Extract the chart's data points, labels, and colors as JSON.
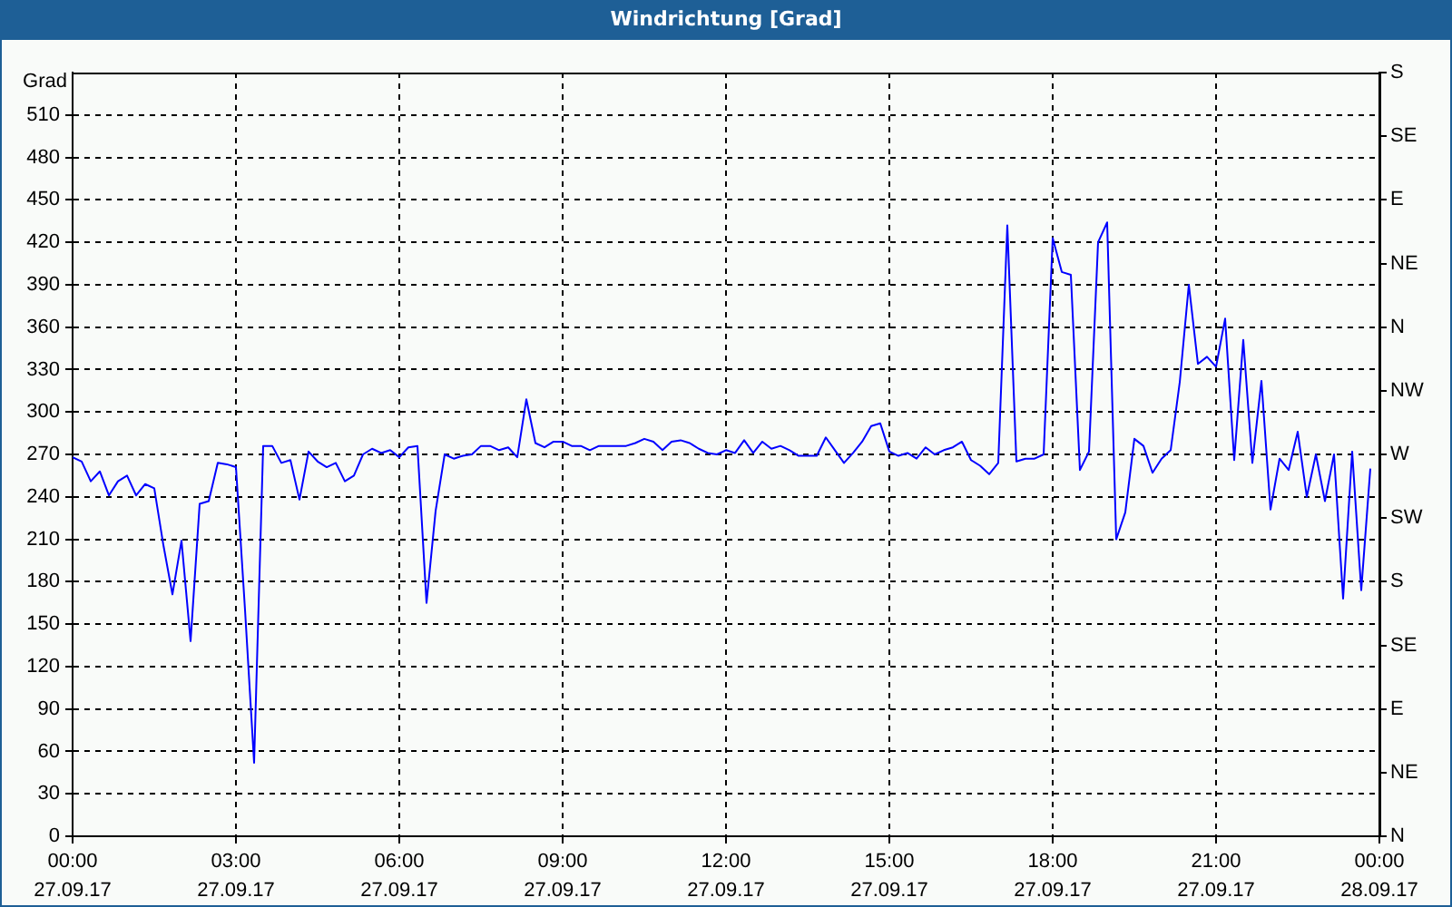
{
  "chart_data": {
    "type": "line",
    "title": "Windrichtung [Grad]",
    "ylabel": "Grad",
    "x": [
      "--09-27T00:00",
      "--09-27T00:10",
      "--09-27T00:20",
      "--09-27T00:30",
      "--09-27T00:40",
      "--09-27T00:50",
      "--09-27T01:00",
      "--09-27T01:10",
      "--09-27T01:20",
      "--09-27T01:30",
      "--09-27T01:40",
      "--09-27T01:50",
      "--09-27T02:00",
      "--09-27T02:10",
      "--09-27T02:20",
      "--09-27T02:30",
      "--09-27T02:40",
      "--09-27T02:50",
      "--09-27T03:00",
      "--09-27T03:10",
      "--09-27T03:20",
      "--09-27T03:30",
      "--09-27T03:40",
      "--09-27T03:50",
      "--09-27T04:00",
      "--09-27T04:10",
      "--09-27T04:20",
      "--09-27T04:30",
      "--09-27T04:40",
      "--09-27T04:50",
      "--09-27T05:00",
      "--09-27T05:10",
      "--09-27T05:20",
      "--09-27T05:30",
      "--09-27T05:40",
      "--09-27T05:50",
      "--09-27T06:00",
      "--09-27T06:10",
      "--09-27T06:20",
      "--09-27T06:30",
      "--09-27T06:40",
      "--09-27T06:50",
      "--09-27T07:00",
      "--09-27T07:10",
      "--09-27T07:20",
      "--09-27T07:30",
      "--09-27T07:40",
      "--09-27T07:50",
      "--09-27T08:00",
      "--09-27T08:10",
      "--09-27T08:20",
      "--09-27T08:30",
      "--09-27T08:40",
      "--09-27T08:50",
      "--09-27T09:00",
      "--09-27T09:10",
      "--09-27T09:20",
      "--09-27T09:30",
      "--09-27T09:40",
      "--09-27T09:50",
      "--09-27T10:00",
      "--09-27T10:10",
      "--09-27T10:20",
      "--09-27T10:30",
      "--09-27T10:40",
      "--09-27T10:50",
      "--09-27T11:00",
      "--09-27T11:10",
      "--09-27T11:20",
      "--09-27T11:30",
      "--09-27T11:40",
      "--09-27T11:50",
      "--09-27T12:00",
      "--09-27T12:10",
      "--09-27T12:20",
      "--09-27T12:30",
      "--09-27T12:40",
      "--09-27T12:50",
      "--09-27T13:00",
      "--09-27T13:10",
      "--09-27T13:20",
      "--09-27T13:30",
      "--09-27T13:40",
      "--09-27T13:50",
      "--09-27T14:00",
      "--09-27T14:10",
      "--09-27T14:20",
      "--09-27T14:30",
      "--09-27T14:40",
      "--09-27T14:50",
      "--09-27T15:00",
      "--09-27T15:10",
      "--09-27T15:20",
      "--09-27T15:30",
      "--09-27T15:40",
      "--09-27T15:50",
      "--09-27T16:00",
      "--09-27T16:10",
      "--09-27T16:20",
      "--09-27T16:30",
      "--09-27T16:40",
      "--09-27T16:50",
      "--09-27T17:00",
      "--09-27T17:10",
      "--09-27T17:20",
      "--09-27T17:30",
      "--09-27T17:40",
      "--09-27T17:50",
      "--09-27T18:00",
      "--09-27T18:10",
      "--09-27T18:20",
      "--09-27T18:30",
      "--09-27T18:40",
      "--09-27T18:50",
      "--09-27T19:00",
      "--09-27T19:10",
      "--09-27T19:20",
      "--09-27T19:30",
      "--09-27T19:40",
      "--09-27T19:50",
      "--09-27T20:00",
      "--09-27T20:10",
      "--09-27T20:20",
      "--09-27T20:30",
      "--09-27T20:40",
      "--09-27T20:50",
      "--09-27T21:00",
      "--09-27T21:10",
      "--09-27T21:20",
      "--09-27T21:30",
      "--09-27T21:40",
      "--09-27T21:50",
      "--09-27T22:00",
      "--09-27T22:10",
      "--09-27T22:20",
      "--09-27T22:30",
      "--09-27T22:40",
      "--09-27T22:50",
      "--09-27T23:00",
      "--09-27T23:10",
      "--09-27T23:20",
      "--09-27T23:30",
      "--09-27T23:40",
      "--09-27T23:50"
    ],
    "values": [
      268,
      265,
      251,
      258,
      241,
      251,
      255,
      241,
      249,
      246,
      206,
      171,
      209,
      138,
      235,
      237,
      264,
      263,
      261,
      160,
      52,
      276,
      276,
      264,
      266,
      238,
      272,
      265,
      261,
      264,
      251,
      255,
      270,
      274,
      271,
      273,
      268,
      275,
      276,
      165,
      230,
      270,
      267,
      269,
      270,
      276,
      276,
      273,
      275,
      268,
      309,
      278,
      275,
      279,
      279,
      276,
      276,
      273,
      276,
      276,
      276,
      276,
      278,
      281,
      279,
      273,
      279,
      280,
      278,
      274,
      271,
      270,
      273,
      271,
      280,
      271,
      279,
      274,
      276,
      273,
      269,
      269,
      269,
      282,
      273,
      264,
      271,
      279,
      290,
      292,
      272,
      269,
      271,
      267,
      275,
      270,
      273,
      275,
      279,
      266,
      262,
      256,
      264,
      432,
      265,
      267,
      267,
      270,
      423,
      399,
      397,
      259,
      272,
      420,
      434,
      210,
      229,
      281,
      276,
      257,
      267,
      273,
      321,
      390,
      334,
      339,
      332,
      366,
      266,
      351,
      264,
      322,
      231,
      267,
      259,
      286,
      240,
      270,
      237,
      270,
      168,
      272,
      174,
      260
    ],
    "color": "#0000ff",
    "xlim": [
      "--09-27T00:00",
      "--09-28T00:00"
    ],
    "xticks": [
      {
        "value": "--09-27T00:00",
        "label": "00:00\n27.09.17"
      },
      {
        "value": "--09-27T03:00",
        "label": "03:00\n27.09.17"
      },
      {
        "value": "--09-27T06:00",
        "label": "06:00\n27.09.17"
      },
      {
        "value": "--09-27T09:00",
        "label": "09:00\n27.09.17"
      },
      {
        "value": "--09-27T12:00",
        "label": "12:00\n27.09.17"
      },
      {
        "value": "--09-27T15:00",
        "label": "15:00\n27.09.17"
      },
      {
        "value": "--09-27T18:00",
        "label": "18:00\n27.09.17"
      },
      {
        "value": "--09-27T21:00",
        "label": "21:00\n27.09.17"
      },
      {
        "value": "--09-28T00:00",
        "label": "00:00\n28.09.17"
      }
    ],
    "ylim": [
      0,
      540
    ],
    "yticks": [
      0,
      30,
      60,
      90,
      120,
      150,
      180,
      210,
      240,
      270,
      300,
      330,
      360,
      390,
      420,
      450,
      480,
      510
    ],
    "y2_categories": [
      "S",
      "SE",
      "E",
      "NE",
      "N",
      "NW",
      "W",
      "SW",
      "S",
      "SE",
      "E",
      "NE",
      "N"
    ],
    "grid": true,
    "marker": "none",
    "line_style": "solid"
  }
}
